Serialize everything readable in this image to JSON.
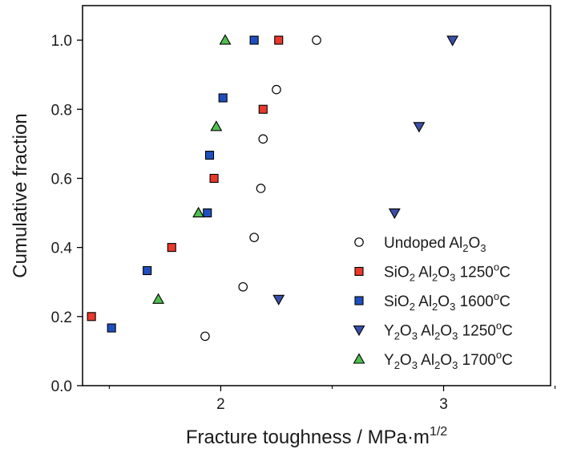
{
  "chart_data": {
    "type": "scatter",
    "xlabel": "Fracture toughness / MPa·m",
    "xlabel_sup": "1/2",
    "ylabel": "Cumulative fraction",
    "xlim": [
      1.38,
      3.48
    ],
    "ylim": [
      0,
      1.1
    ],
    "x_ticks": [
      2,
      3
    ],
    "x_tick_labels": [
      "2",
      "3"
    ],
    "x_minor_ticks": [
      1.5,
      2.5,
      3.5
    ],
    "y_ticks": [
      0,
      0.2,
      0.4,
      0.6,
      0.8,
      1.0
    ],
    "y_tick_labels": [
      "0.0",
      "0.2",
      "0.4",
      "0.6",
      "0.8",
      "1.0"
    ],
    "grid": false,
    "legend_position": "bottom-right",
    "series": [
      {
        "label_parts": [
          [
            "Undoped Al",
            ""
          ],
          [
            "2",
            "sub"
          ],
          [
            "O",
            ""
          ],
          [
            "3",
            "sub"
          ]
        ],
        "marker": "circle",
        "color": "#ffffff",
        "stroke": "#000000",
        "points": [
          [
            1.93,
            0.143
          ],
          [
            2.1,
            0.286
          ],
          [
            2.15,
            0.429
          ],
          [
            2.18,
            0.571
          ],
          [
            2.19,
            0.714
          ],
          [
            2.25,
            0.857
          ],
          [
            2.43,
            1.0
          ]
        ]
      },
      {
        "label_parts": [
          [
            "SiO",
            ""
          ],
          [
            "2",
            "sub"
          ],
          [
            " Al",
            ""
          ],
          [
            "2",
            "sub"
          ],
          [
            "O",
            ""
          ],
          [
            "3",
            "sub"
          ],
          [
            " 1250",
            ""
          ],
          [
            "o",
            "sup"
          ],
          [
            "C",
            ""
          ]
        ],
        "marker": "square",
        "color": "#e8392b",
        "stroke": "#000000",
        "points": [
          [
            1.42,
            0.2
          ],
          [
            1.78,
            0.4
          ],
          [
            1.97,
            0.6
          ],
          [
            2.19,
            0.8
          ],
          [
            2.26,
            1.0
          ]
        ]
      },
      {
        "label_parts": [
          [
            "SiO",
            ""
          ],
          [
            "2",
            "sub"
          ],
          [
            " Al",
            ""
          ],
          [
            "2",
            "sub"
          ],
          [
            "O",
            ""
          ],
          [
            "3",
            "sub"
          ],
          [
            " 1600",
            ""
          ],
          [
            "o",
            "sup"
          ],
          [
            "C",
            ""
          ]
        ],
        "marker": "square",
        "color": "#1f4fbf",
        "stroke": "#000000",
        "points": [
          [
            1.51,
            0.167
          ],
          [
            1.67,
            0.333
          ],
          [
            1.94,
            0.5
          ],
          [
            1.95,
            0.667
          ],
          [
            2.01,
            0.833
          ],
          [
            2.15,
            1.0
          ]
        ]
      },
      {
        "label_parts": [
          [
            "Y",
            ""
          ],
          [
            "2",
            "sub"
          ],
          [
            "O",
            ""
          ],
          [
            "3",
            "sub"
          ],
          [
            " Al",
            ""
          ],
          [
            "2",
            "sub"
          ],
          [
            "O",
            ""
          ],
          [
            "3",
            "sub"
          ],
          [
            " 1250",
            ""
          ],
          [
            "o",
            "sup"
          ],
          [
            "C",
            ""
          ]
        ],
        "marker": "triangle-down",
        "color": "#3b4fa8",
        "stroke": "#000000",
        "points": [
          [
            2.26,
            0.25
          ],
          [
            2.78,
            0.5
          ],
          [
            2.89,
            0.75
          ],
          [
            3.04,
            1.0
          ]
        ]
      },
      {
        "label_parts": [
          [
            "Y",
            ""
          ],
          [
            "2",
            "sub"
          ],
          [
            "O",
            ""
          ],
          [
            "3",
            "sub"
          ],
          [
            " Al",
            ""
          ],
          [
            "2",
            "sub"
          ],
          [
            "O",
            ""
          ],
          [
            "3",
            "sub"
          ],
          [
            " 1700",
            ""
          ],
          [
            "o",
            "sup"
          ],
          [
            "C",
            ""
          ]
        ],
        "marker": "triangle-up",
        "color": "#4fbf4f",
        "stroke": "#000000",
        "points": [
          [
            1.72,
            0.25
          ],
          [
            1.9,
            0.5
          ],
          [
            1.98,
            0.75
          ],
          [
            2.02,
            1.0
          ]
        ]
      }
    ]
  }
}
